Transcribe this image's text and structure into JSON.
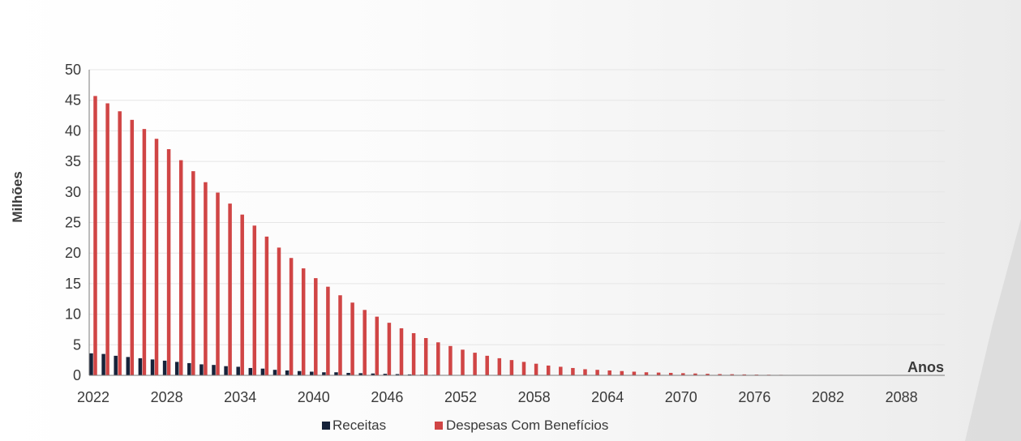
{
  "chart_data": {
    "type": "bar",
    "ylabel": "Milhões",
    "xlabel": "Anos",
    "ylim": [
      0,
      50
    ],
    "y_ticks": [
      "0",
      "5",
      "10",
      "15",
      "20",
      "25",
      "30",
      "35",
      "40",
      "45",
      "50"
    ],
    "x_start": 2022,
    "x_end": 2092,
    "x_tick_labels": [
      "2022",
      "2028",
      "2034",
      "2040",
      "2046",
      "2052",
      "2058",
      "2064",
      "2070",
      "2076",
      "2082",
      "2088"
    ],
    "grid": true,
    "legend_position": "bottom",
    "series": [
      {
        "name": "Receitas",
        "color": "#16233a",
        "values": [
          3.6,
          3.5,
          3.2,
          3.0,
          2.8,
          2.6,
          2.4,
          2.2,
          2.0,
          1.8,
          1.7,
          1.5,
          1.4,
          1.2,
          1.1,
          0.9,
          0.8,
          0.7,
          0.6,
          0.5,
          0.5,
          0.4,
          0.35,
          0.3,
          0.25,
          0.2,
          0.15,
          0.1,
          0.08,
          0.05,
          0.04,
          0.03,
          0.02,
          0.01,
          0.01,
          0,
          0,
          0,
          0,
          0,
          0,
          0,
          0,
          0,
          0,
          0,
          0,
          0,
          0,
          0,
          0,
          0,
          0,
          0,
          0,
          0,
          0,
          0,
          0,
          0,
          0,
          0,
          0,
          0,
          0,
          0,
          0,
          0,
          0,
          0,
          0
        ]
      },
      {
        "name": "Despesas Com Benefícios",
        "color": "#d04545",
        "values": [
          45.7,
          44.5,
          43.2,
          41.8,
          40.3,
          38.7,
          37.0,
          35.2,
          33.4,
          31.6,
          29.9,
          28.1,
          26.3,
          24.5,
          22.7,
          20.9,
          19.2,
          17.5,
          15.9,
          14.5,
          13.1,
          11.9,
          10.7,
          9.6,
          8.6,
          7.7,
          6.9,
          6.1,
          5.4,
          4.8,
          4.2,
          3.7,
          3.2,
          2.8,
          2.5,
          2.2,
          1.9,
          1.6,
          1.4,
          1.2,
          1.0,
          0.9,
          0.8,
          0.7,
          0.6,
          0.5,
          0.45,
          0.4,
          0.35,
          0.3,
          0.25,
          0.2,
          0.18,
          0.15,
          0.12,
          0.1,
          0.08,
          0,
          0,
          0,
          0,
          0,
          0,
          0,
          0,
          0,
          0,
          0,
          0,
          0,
          0
        ]
      }
    ]
  }
}
